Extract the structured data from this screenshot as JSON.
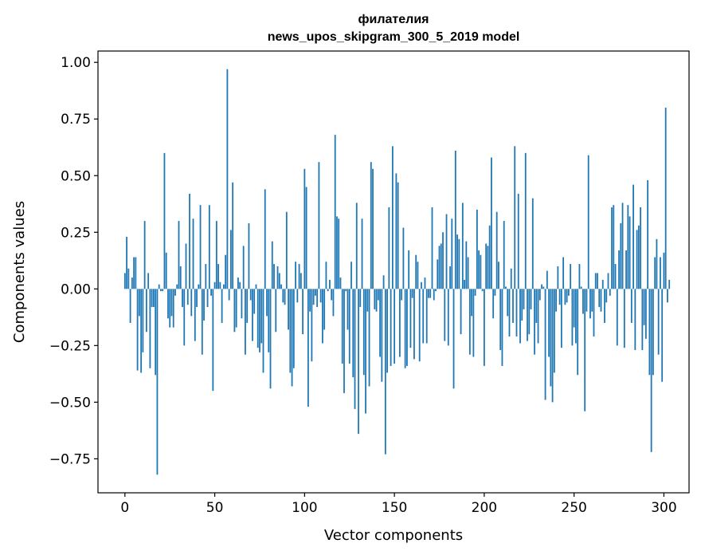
{
  "chart_data": {
    "type": "bar",
    "title": "филателия",
    "subtitle": "news_upos_skipgram_300_5_2019 model",
    "xlabel": "Vector components",
    "ylabel": "Components values",
    "xlim": [
      -15,
      314
    ],
    "ylim": [
      -0.9,
      1.05
    ],
    "xticks": [
      0,
      50,
      100,
      150,
      200,
      250,
      300
    ],
    "xtick_labels": [
      "0",
      "50",
      "100",
      "150",
      "200",
      "250",
      "300"
    ],
    "yticks": [
      1.0,
      0.75,
      0.5,
      0.25,
      0.0,
      -0.25,
      -0.5,
      -0.75
    ],
    "ytick_labels": [
      "1.00",
      "0.75",
      "0.50",
      "0.25",
      "0.00",
      "−0.25",
      "−0.50",
      "−0.75"
    ],
    "grid": false,
    "bar_color": "#1f77b4",
    "values": [
      0.07,
      0.23,
      0.09,
      -0.15,
      0.05,
      0.14,
      0.14,
      -0.36,
      -0.12,
      -0.37,
      -0.28,
      0.3,
      -0.19,
      0.07,
      -0.35,
      -0.08,
      -0.08,
      -0.38,
      -0.82,
      0.02,
      -0.01,
      -0.01,
      0.6,
      0.16,
      -0.13,
      -0.17,
      -0.12,
      -0.17,
      -0.03,
      0.02,
      0.3,
      0.1,
      -0.08,
      -0.25,
      0.2,
      -0.07,
      0.42,
      -0.12,
      0.31,
      -0.23,
      -0.08,
      0.02,
      0.37,
      -0.29,
      -0.14,
      0.11,
      -0.08,
      0.37,
      -0.03,
      -0.45,
      0.03,
      0.3,
      0.11,
      0.03,
      -0.15,
      0.02,
      0.15,
      0.97,
      -0.05,
      0.26,
      0.47,
      -0.19,
      -0.17,
      0.05,
      0.03,
      -0.13,
      0.19,
      -0.29,
      -0.15,
      0.29,
      -0.05,
      -0.23,
      -0.11,
      0.02,
      -0.26,
      -0.28,
      -0.24,
      -0.37,
      0.44,
      -0.12,
      -0.28,
      -0.44,
      0.21,
      0.11,
      -0.19,
      0.1,
      0.07,
      0.02,
      -0.06,
      -0.07,
      0.34,
      -0.18,
      -0.37,
      -0.43,
      -0.35,
      0.12,
      -0.06,
      0.11,
      0.07,
      -0.2,
      0.53,
      0.45,
      -0.52,
      -0.1,
      -0.32,
      -0.07,
      -0.03,
      -0.08,
      0.56,
      -0.06,
      -0.24,
      -0.18,
      0.12,
      -0.01,
      0.04,
      -0.05,
      -0.12,
      0.68,
      0.32,
      0.31,
      0.05,
      -0.33,
      -0.46,
      -0.01,
      -0.18,
      -0.33,
      0.12,
      -0.39,
      -0.53,
      0.38,
      -0.64,
      -0.08,
      0.31,
      -0.38,
      -0.55,
      -0.1,
      -0.43,
      0.56,
      0.53,
      -0.09,
      -0.1,
      -0.05,
      -0.3,
      -0.41,
      0.06,
      -0.73,
      -0.37,
      0.36,
      -0.34,
      0.63,
      -0.33,
      0.51,
      0.47,
      -0.3,
      -0.05,
      0.27,
      -0.35,
      -0.34,
      0.17,
      -0.26,
      -0.04,
      -0.31,
      0.15,
      0.12,
      -0.32,
      0.03,
      -0.24,
      0.05,
      -0.24,
      -0.04,
      -0.04,
      0.36,
      -0.05,
      -0.01,
      0.13,
      0.19,
      0.2,
      0.25,
      -0.23,
      0.33,
      -0.25,
      0.1,
      0.31,
      -0.44,
      0.61,
      0.24,
      0.22,
      -0.2,
      0.38,
      0.04,
      0.21,
      0.14,
      -0.29,
      -0.12,
      -0.3,
      -0.03,
      0.35,
      0.17,
      0.15,
      -0.01,
      -0.34,
      0.2,
      0.19,
      0.28,
      0.58,
      -0.13,
      -0.03,
      0.34,
      0.12,
      -0.27,
      -0.34,
      0.3,
      0.01,
      -0.12,
      -0.21,
      0.09,
      -0.15,
      0.63,
      -0.21,
      0.42,
      -0.24,
      -0.14,
      -0.09,
      0.6,
      -0.23,
      -0.2,
      -0.09,
      0.4,
      -0.29,
      -0.15,
      -0.24,
      -0.05,
      0.02,
      0.01,
      -0.49,
      0.08,
      -0.3,
      -0.43,
      -0.5,
      -0.37,
      -0.1,
      0.1,
      -0.07,
      -0.26,
      0.14,
      -0.07,
      -0.06,
      -0.03,
      0.11,
      -0.25,
      -0.17,
      -0.24,
      -0.38,
      0.11,
      0.01,
      -0.11,
      -0.54,
      -0.1,
      0.59,
      -0.13,
      -0.1,
      -0.21,
      0.07,
      0.07,
      -0.08,
      -0.1,
      0.04,
      -0.15,
      -0.06,
      0.07,
      -0.03,
      0.36,
      0.37,
      0.11,
      -0.25,
      0.17,
      0.29,
      0.38,
      -0.26,
      0.17,
      0.37,
      0.32,
      -0.15,
      0.46,
      -0.27,
      0.26,
      0.28,
      0.36,
      -0.27,
      -0.16,
      -0.22,
      0.48,
      -0.38,
      -0.72,
      -0.38,
      0.14,
      0.22,
      -0.29,
      0.14,
      -0.41,
      0.16,
      0.8,
      -0.06,
      0.04
    ]
  }
}
